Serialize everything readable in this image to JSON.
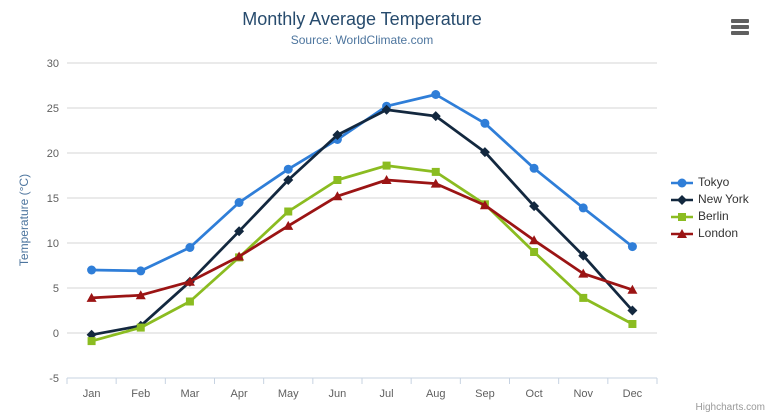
{
  "credit_label": "Highcharts.com",
  "context_menu_button": "chart context menu",
  "chart_data": {
    "type": "line",
    "title": "Monthly Average Temperature",
    "subtitle": "Source: WorldClimate.com",
    "xlabel": "",
    "ylabel": "Temperature (°C)",
    "categories": [
      "Jan",
      "Feb",
      "Mar",
      "Apr",
      "May",
      "Jun",
      "Jul",
      "Aug",
      "Sep",
      "Oct",
      "Nov",
      "Dec"
    ],
    "ylim": [
      -5,
      30
    ],
    "yticks": [
      -5,
      0,
      5,
      10,
      15,
      20,
      25,
      30
    ],
    "grid": "horizontal-only",
    "legend_position": "right",
    "series": [
      {
        "name": "Tokyo",
        "marker": "circle",
        "color": "#2f7ed8",
        "values": [
          7.0,
          6.9,
          9.5,
          14.5,
          18.2,
          21.5,
          25.2,
          26.5,
          23.3,
          18.3,
          13.9,
          9.6
        ]
      },
      {
        "name": "New York",
        "marker": "diamond",
        "color": "#13283f",
        "values": [
          -0.2,
          0.8,
          5.7,
          11.3,
          17.0,
          22.0,
          24.8,
          24.1,
          20.1,
          14.1,
          8.6,
          2.5
        ]
      },
      {
        "name": "Berlin",
        "marker": "square",
        "color": "#8bbc21",
        "values": [
          -0.9,
          0.6,
          3.5,
          8.4,
          13.5,
          17.0,
          18.6,
          17.9,
          14.3,
          9.0,
          3.9,
          1.0
        ]
      },
      {
        "name": "London",
        "marker": "triangle",
        "color": "#9b1414",
        "values": [
          3.9,
          4.2,
          5.7,
          8.5,
          11.9,
          15.2,
          17.0,
          16.6,
          14.2,
          10.3,
          6.6,
          4.8
        ]
      }
    ],
    "colors": {
      "title": "#274b6d",
      "subtitle": "#4d759e",
      "axis_label": "#606060",
      "axis_line": "#c7d3e2",
      "gridline": "#d6d6d6",
      "legend_label": "#333333",
      "credit": "#999999",
      "menu_icon": "#606060"
    }
  }
}
